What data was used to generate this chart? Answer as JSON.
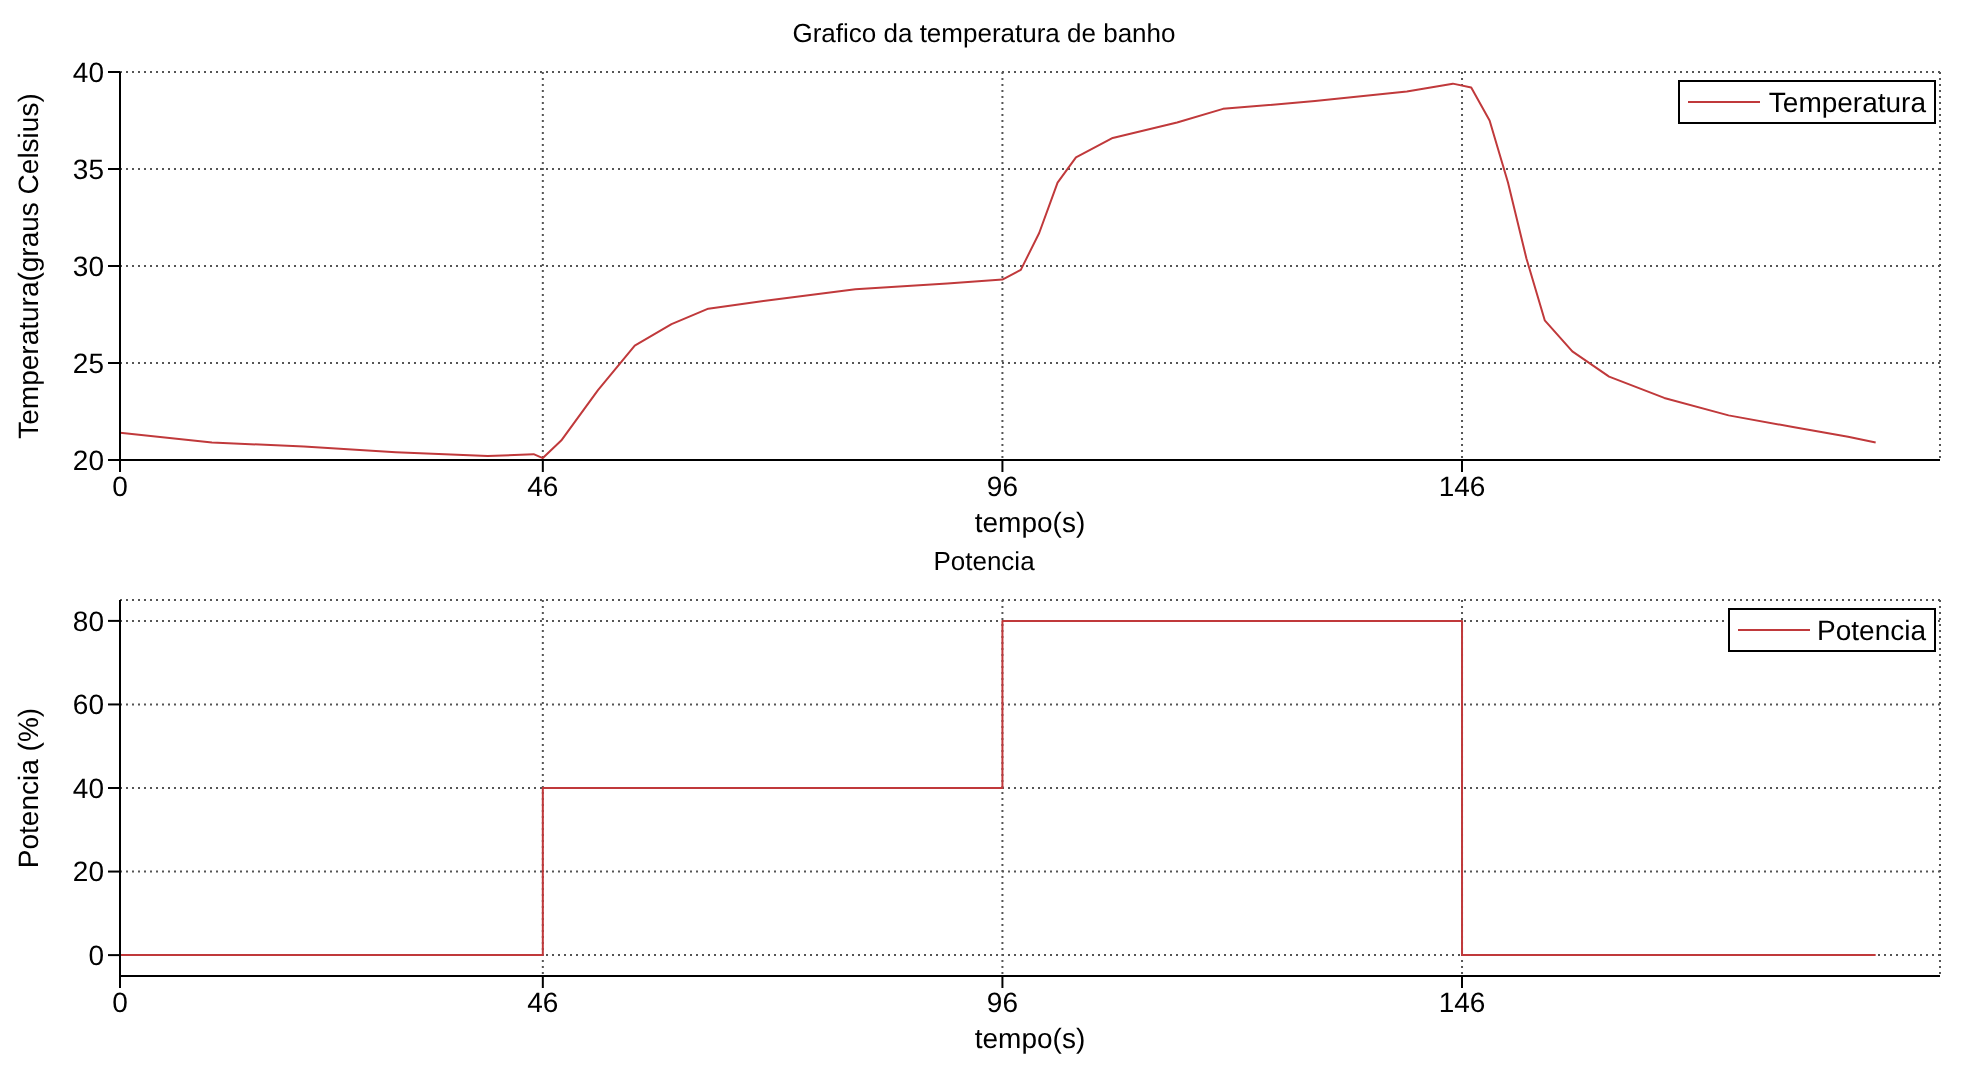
{
  "chart_data": [
    {
      "type": "line",
      "title": "Grafico da temperatura de banho",
      "xlabel": "tempo(s)",
      "ylabel": "Temperatura(graus Celsius)",
      "xlim": [
        0,
        198
      ],
      "xticks": [
        0,
        46,
        96,
        146
      ],
      "ylim": [
        20,
        40
      ],
      "yticks": [
        20,
        25,
        30,
        35,
        40
      ],
      "grid": true,
      "legend": "top right",
      "series": [
        {
          "name": "Temperatura",
          "color": "#c0393b",
          "x": [
            0,
            10,
            20,
            30,
            40,
            45,
            46,
            48,
            52,
            56,
            60,
            64,
            70,
            80,
            90,
            96,
            98,
            100,
            102,
            104,
            108,
            115,
            120,
            130,
            140,
            145,
            147,
            149,
            151,
            153,
            155,
            158,
            162,
            168,
            175,
            182,
            188,
            191
          ],
          "values": [
            21.4,
            20.9,
            20.7,
            20.4,
            20.2,
            20.3,
            20.1,
            21.0,
            23.6,
            25.9,
            27.0,
            27.8,
            28.2,
            28.8,
            29.1,
            29.3,
            29.8,
            31.7,
            34.3,
            35.6,
            36.6,
            37.4,
            38.1,
            38.5,
            39.0,
            39.4,
            39.2,
            37.5,
            34.3,
            30.4,
            27.2,
            25.6,
            24.3,
            23.2,
            22.3,
            21.7,
            21.2,
            20.9
          ]
        }
      ]
    },
    {
      "type": "step",
      "title": "Potencia",
      "xlabel": "tempo(s)",
      "ylabel": "Potencia (%)",
      "xlim": [
        0,
        198
      ],
      "xticks": [
        0,
        46,
        96,
        146
      ],
      "ylim": [
        -5,
        85
      ],
      "yticks": [
        0,
        20,
        40,
        60,
        80
      ],
      "grid": true,
      "legend": "top right",
      "series": [
        {
          "name": "Potencia",
          "color": "#c0393b",
          "x": [
            0,
            46,
            96,
            146,
            191
          ],
          "values": [
            0,
            40,
            80,
            0,
            0
          ]
        }
      ]
    }
  ]
}
